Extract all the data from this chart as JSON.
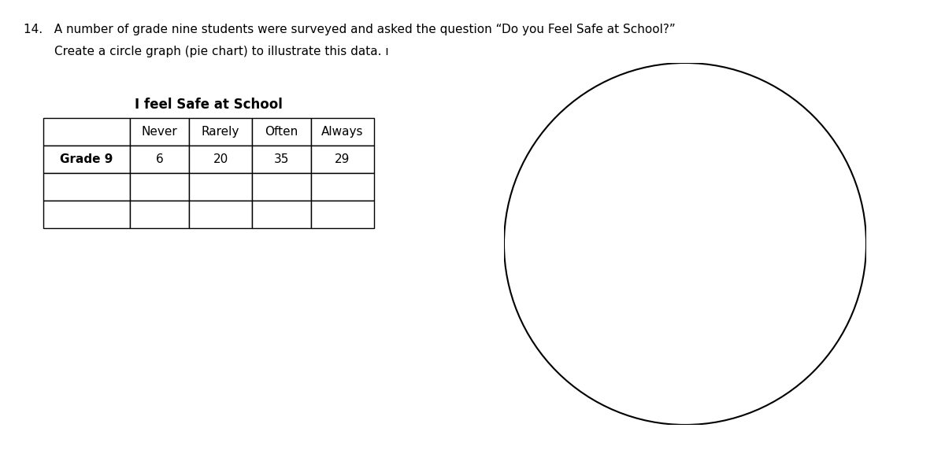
{
  "question_line1": "14.   A number of grade nine students were surveyed and asked the question “Do you Feel Safe at School?”",
  "question_line2": "        Create a circle graph (pie chart) to illustrate this data. ı",
  "table_title": "I feel Safe at School",
  "table_headers": [
    "",
    "Never",
    "Rarely",
    "Often",
    "Always"
  ],
  "table_row1": [
    "Grade 9",
    "6",
    "20",
    "35",
    "29"
  ],
  "table_row2": [
    "",
    "",
    "",
    "",
    ""
  ],
  "table_row3": [
    "",
    "",
    "",
    "",
    ""
  ],
  "background_color": "#ffffff",
  "circle_color": "#000000",
  "fig_width": 12.0,
  "fig_height": 6.0,
  "dpi": 100
}
